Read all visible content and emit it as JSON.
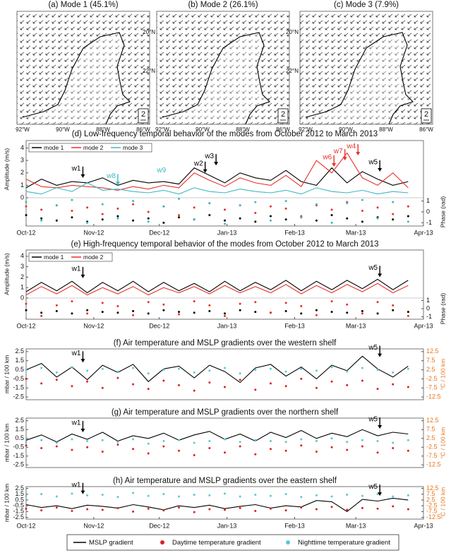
{
  "maps": [
    {
      "title": "(a) Mode 1 (45.1%)",
      "lon_labels": [
        "92°W",
        "90°W",
        "88°W",
        "86°W"
      ],
      "scale": 2
    },
    {
      "title": "(b) Mode 2 (26.1%)",
      "lat_labels": [
        "20°N",
        "22°N"
      ],
      "lon_labels": [
        "92°W",
        "90°W",
        "88°W",
        "86°W"
      ],
      "scale": 2
    },
    {
      "title": "(c) Mode 3 (7.9%)",
      "lat_labels": [
        "20°N",
        "22°N"
      ],
      "lon_labels": [
        "92°W",
        "90°W",
        "88°W",
        "86°W"
      ],
      "scale": 2
    }
  ],
  "chart_data": [
    {
      "type": "amplitude-phase",
      "title": "(d) Low-frequency temporal behavior of the modes from October 2012 to March 2013",
      "y_label": "Amplitude (m/s)",
      "y2_label": "Phase (rad)",
      "legend": "upper left",
      "x": [
        0,
        7,
        14,
        21,
        28,
        35,
        42,
        49,
        56,
        63,
        70,
        77,
        84,
        91,
        98,
        105,
        112,
        119,
        126,
        133,
        140,
        147,
        154,
        161,
        168,
        175
      ],
      "xlim": [
        0,
        182
      ],
      "xticks": [
        {
          "value": 0,
          "label": "Oct-12"
        },
        {
          "value": 31,
          "label": "Nov-12"
        },
        {
          "value": 61,
          "label": "Dec-12"
        },
        {
          "value": 92,
          "label": "Jan-13"
        },
        {
          "value": 123,
          "label": "Feb-13"
        },
        {
          "value": 151,
          "label": "Mar-13"
        },
        {
          "value": 182,
          "label": "Apr-13"
        }
      ],
      "ylim": [
        0,
        4.6
      ],
      "yticks": [
        0,
        1,
        2,
        3,
        4
      ],
      "y2lim": [
        -1.3,
        1.3
      ],
      "y2ticks": [
        -1,
        0,
        1
      ],
      "series": [
        {
          "name": "mode 1",
          "color": "#000000",
          "values": [
            0.8,
            1.5,
            1.0,
            1.3,
            1.2,
            1.6,
            1.0,
            1.4,
            1.2,
            1.3,
            1.1,
            2.4,
            1.8,
            1.2,
            2.0,
            1.6,
            1.4,
            2.2,
            1.3,
            1.0,
            2.4,
            1.2,
            2.1,
            1.5,
            1.0,
            1.3
          ],
          "phase": [
            -0.3,
            -0.6,
            -0.8,
            -0.5,
            -0.9,
            -0.7,
            -0.4,
            -0.8,
            -0.6,
            -1.0,
            -0.5,
            -0.7,
            -0.3,
            -0.8,
            -0.6,
            -0.9,
            -0.4,
            -0.7,
            -0.5,
            -0.8,
            -0.3,
            -0.6,
            -0.9,
            -0.5,
            -0.7,
            -0.4
          ]
        },
        {
          "name": "mode 2",
          "color": "#e8312a",
          "values": [
            1.5,
            0.9,
            0.8,
            1.0,
            0.9,
            0.8,
            0.6,
            0.9,
            0.7,
            1.0,
            0.8,
            2.0,
            1.4,
            0.9,
            1.6,
            1.2,
            1.0,
            1.8,
            0.9,
            3.0,
            2.0,
            3.6,
            1.6,
            1.0,
            2.0,
            0.8
          ],
          "phase": [
            0.5,
            0.2,
            0.6,
            0.1,
            0.4,
            -0.2,
            0.3,
            0.7,
            0.0,
            0.5,
            -0.3,
            0.4,
            0.8,
            0.2,
            0.6,
            -0.1,
            0.5,
            0.3,
            -0.4,
            0.6,
            0.2,
            0.9,
            0.1,
            0.4,
            -0.2,
            0.5
          ]
        },
        {
          "name": "mode 3",
          "color": "#3cb8c4",
          "values": [
            0.5,
            0.3,
            0.8,
            0.5,
            1.2,
            0.6,
            0.7,
            0.5,
            0.4,
            0.6,
            0.3,
            0.8,
            0.5,
            0.4,
            0.7,
            0.5,
            0.4,
            0.6,
            0.3,
            0.8,
            0.5,
            0.4,
            0.6,
            0.3,
            0.5,
            0.4
          ],
          "phase": [
            0.9,
            -0.8,
            0.6,
            1.1,
            -1.0,
            0.7,
            -0.6,
            1.0,
            -0.9,
            0.5,
            1.2,
            -0.7,
            0.8,
            -1.1,
            0.6,
            0.9,
            -0.8,
            1.0,
            -0.5,
            0.7,
            -1.0,
            0.8,
            1.1,
            -0.6,
            0.9,
            -0.9
          ]
        }
      ],
      "annotations": [
        {
          "label": "w1",
          "x": 26,
          "y": 1.6,
          "color": "#000000"
        },
        {
          "label": "w8",
          "x": 42,
          "y": 1.0,
          "color": "#3cb8c4"
        },
        {
          "label": "w9",
          "x": 62,
          "y": 2.2,
          "color": "#3cb8c4",
          "arrow": false
        },
        {
          "label": "w2",
          "x": 82,
          "y": 2.0,
          "color": "#000000"
        },
        {
          "label": "w3",
          "x": 87,
          "y": 2.6,
          "color": "#000000"
        },
        {
          "label": "w6",
          "x": 141,
          "y": 2.5,
          "color": "#e8312a"
        },
        {
          "label": "w7",
          "x": 146,
          "y": 3.0,
          "color": "#e8312a"
        },
        {
          "label": "w4",
          "x": 152,
          "y": 3.4,
          "color": "#e8312a"
        },
        {
          "label": "w5",
          "x": 162,
          "y": 2.1,
          "color": "#000000"
        }
      ]
    },
    {
      "type": "amplitude-phase",
      "title": "(e) High-frequency temporal behavior of the modes from October 2012 to March 2013",
      "y_label": "Amplitude (m/s)",
      "y2_label": "Phase (rad)",
      "legend": "upper left",
      "x": [
        0,
        7,
        14,
        21,
        28,
        35,
        42,
        49,
        56,
        63,
        70,
        77,
        84,
        91,
        98,
        105,
        112,
        119,
        126,
        133,
        140,
        147,
        154,
        161,
        168,
        175
      ],
      "xlim": [
        0,
        182
      ],
      "xticks": [
        {
          "value": 0,
          "label": "Oct-12"
        },
        {
          "value": 31,
          "label": "Nov-12"
        },
        {
          "value": 61,
          "label": "Dec-12"
        },
        {
          "value": 92,
          "label": "Jan-13"
        },
        {
          "value": 123,
          "label": "Feb-13"
        },
        {
          "value": 151,
          "label": "Mar-13"
        },
        {
          "value": 182,
          "label": "Apr-13"
        }
      ],
      "ylim": [
        0,
        4.6
      ],
      "yticks": [
        0,
        1,
        2,
        3,
        4
      ],
      "y2lim": [
        -1.3,
        1.3
      ],
      "y2ticks": [
        -1,
        0,
        1
      ],
      "series": [
        {
          "name": "mode 1",
          "color": "#000000",
          "values": [
            0.6,
            1.5,
            0.7,
            1.6,
            0.5,
            1.5,
            0.7,
            1.6,
            0.6,
            1.5,
            0.7,
            1.4,
            0.6,
            1.6,
            0.7,
            1.5,
            0.8,
            1.7,
            0.7,
            1.6,
            0.8,
            1.7,
            0.9,
            1.8,
            0.8,
            1.7
          ],
          "phase": [
            -0.2,
            -0.5,
            -0.3,
            -0.6,
            -0.2,
            -0.4,
            -0.5,
            -0.3,
            -0.6,
            -0.2,
            -0.4,
            -0.5,
            -0.3,
            -0.6,
            -0.2,
            -0.4,
            -0.5,
            -0.3,
            -0.6,
            -0.2,
            -0.4,
            -0.5,
            -0.3,
            -0.6,
            -0.2,
            -0.4
          ]
        },
        {
          "name": "mode 2",
          "color": "#e8312a",
          "values": [
            0.3,
            1.1,
            0.4,
            1.2,
            0.3,
            1.0,
            0.4,
            1.1,
            0.3,
            1.0,
            0.5,
            1.1,
            0.4,
            1.2,
            0.5,
            1.1,
            0.5,
            1.3,
            0.4,
            1.2,
            0.5,
            1.3,
            0.6,
            1.4,
            0.5,
            1.2
          ],
          "phase": [
            0.6,
            -0.9,
            0.4,
            0.9,
            -0.6,
            0.7,
            0.3,
            -0.8,
            0.8,
            0.5,
            -0.7,
            0.9,
            0.4,
            -0.9,
            0.6,
            0.8,
            -0.5,
            0.7,
            0.3,
            -0.8,
            0.9,
            0.5,
            -0.6,
            0.8,
            0.4,
            -0.9
          ]
        }
      ],
      "annotations": [
        {
          "label": "w1",
          "x": 26,
          "y": 1.9,
          "color": "#000000"
        },
        {
          "label": "w5",
          "x": 162,
          "y": 2.0,
          "color": "#000000"
        }
      ]
    },
    {
      "type": "gradient",
      "title": "(f) Air temperature and MSLP gradients over the western shelf",
      "y_label": "mbar / 100 km",
      "y2_label": "°C / 100 km",
      "y2color": "#e8751a",
      "x": [
        0,
        7,
        14,
        21,
        28,
        35,
        42,
        49,
        56,
        63,
        70,
        77,
        84,
        91,
        98,
        105,
        112,
        119,
        126,
        133,
        140,
        147,
        154,
        161,
        168,
        175
      ],
      "xlim": [
        0,
        182
      ],
      "ylim": [
        -2.8,
        2.8
      ],
      "yticks": [
        -2.5,
        -1.5,
        -0.5,
        0.5,
        1.5,
        2.5
      ],
      "y2lim": [
        -14,
        14
      ],
      "y2ticks": [
        -12.5,
        -7.5,
        -2.5,
        2.5,
        7.5,
        12.5
      ],
      "series": [
        {
          "name": "MSLP gradient",
          "color": "#000000",
          "style": "line",
          "values": [
            0.5,
            1.2,
            -0.3,
            0.8,
            -0.6,
            1.0,
            0.2,
            1.1,
            -0.8,
            0.6,
            0.9,
            -0.4,
            1.0,
            0.3,
            -0.9,
            0.7,
            1.1,
            -0.2,
            0.8,
            -0.5,
            1.0,
            0.4,
            2.0,
            0.6,
            -0.3,
            0.9
          ]
        },
        {
          "name": "Daytime temperature gradient",
          "color": "#e02020",
          "style": "dots",
          "axis": "y2",
          "values": [
            -2.5,
            -5.0,
            -3.0,
            -6.5,
            -4.0,
            -7.5,
            -2.0,
            -5.5,
            -8.0,
            -3.5,
            -6.0,
            -9.0,
            -4.5,
            -7.0,
            -3.0,
            -8.5,
            -5.0,
            -6.5,
            -2.5,
            -7.5,
            -4.0,
            -6.0,
            -3.5,
            -8.0,
            -5.5,
            -7.0
          ]
        },
        {
          "name": "Nighttime temperature gradient",
          "color": "#5cc8d8",
          "style": "dots",
          "axis": "y2",
          "values": [
            2.5,
            3.5,
            1.0,
            4.0,
            2.0,
            3.0,
            1.5,
            3.5,
            0.5,
            2.5,
            3.0,
            1.0,
            2.0,
            3.5,
            0.5,
            2.5,
            3.0,
            1.5,
            3.0,
            2.0,
            4.0,
            1.5,
            3.5,
            2.5,
            1.0,
            3.0
          ]
        }
      ],
      "annotations": [
        {
          "label": "w1",
          "x": 26,
          "y": 1.3,
          "color": "#000000"
        },
        {
          "label": "w5",
          "x": 162,
          "y": 1.9,
          "color": "#000000"
        }
      ]
    },
    {
      "type": "gradient",
      "title": "(g) Air temperature and MSLP gradients over the northern shelf",
      "y_label": "mbar / 100 km",
      "y2_label": "°C / 100 km",
      "y2color": "#e8751a",
      "x": [
        0,
        7,
        14,
        21,
        28,
        35,
        42,
        49,
        56,
        63,
        70,
        77,
        84,
        91,
        98,
        105,
        112,
        119,
        126,
        133,
        140,
        147,
        154,
        161,
        168,
        175
      ],
      "xlim": [
        0,
        182
      ],
      "ylim": [
        -2.8,
        2.8
      ],
      "yticks": [
        -2.5,
        -1.5,
        -0.5,
        0.5,
        1.5,
        2.5
      ],
      "y2lim": [
        -14,
        14
      ],
      "y2ticks": [
        -12.5,
        -7.5,
        -2.5,
        2.5,
        7.5,
        12.5
      ],
      "series": [
        {
          "color": "#000000",
          "style": "line",
          "values": [
            0.3,
            0.9,
            0.1,
            1.0,
            0.4,
            1.2,
            0.2,
            0.8,
            0.5,
            1.1,
            0.3,
            0.9,
            1.3,
            0.4,
            1.0,
            0.2,
            1.2,
            0.6,
            1.4,
            0.5,
            1.1,
            0.7,
            1.5,
            0.8,
            1.2,
            1.0
          ]
        },
        {
          "color": "#e02020",
          "style": "dots",
          "axis": "y2",
          "values": [
            -1.5,
            -3.0,
            -2.0,
            -4.0,
            -2.5,
            -5.0,
            -1.0,
            -3.5,
            -6.0,
            -2.0,
            -4.5,
            -7.0,
            -3.0,
            -5.5,
            -2.0,
            -6.5,
            -3.5,
            -4.5,
            -1.5,
            -5.0,
            -2.5,
            -4.0,
            -2.0,
            -5.5,
            -3.0,
            -4.5
          ]
        },
        {
          "color": "#5cc8d8",
          "style": "dots",
          "axis": "y2",
          "values": [
            0.5,
            1.5,
            0.0,
            2.0,
            1.0,
            1.5,
            0.5,
            2.0,
            -0.5,
            1.0,
            1.5,
            0.0,
            1.0,
            2.0,
            0.5,
            1.5,
            1.0,
            0.5,
            2.0,
            1.0,
            2.5,
            0.5,
            1.5,
            1.0,
            0.0,
            1.5
          ]
        }
      ],
      "annotations": [
        {
          "label": "w1",
          "x": 26,
          "y": 1.2,
          "color": "#000000"
        },
        {
          "label": "w5",
          "x": 162,
          "y": 1.6,
          "color": "#000000"
        }
      ]
    },
    {
      "type": "gradient",
      "title": "(h) Air temperature and MSLP gradients over the eastern shelf",
      "y_label": "mbar / 100 km",
      "y2_label": "°C / 100 km",
      "y2color": "#e8751a",
      "x": [
        0,
        7,
        14,
        21,
        28,
        35,
        42,
        49,
        56,
        63,
        70,
        77,
        84,
        91,
        98,
        105,
        112,
        119,
        126,
        133,
        140,
        147,
        154,
        161,
        168,
        175
      ],
      "xlim": [
        0,
        182
      ],
      "xticks": [
        {
          "value": 0,
          "label": "Oct-12"
        },
        {
          "value": 31,
          "label": "Nov-12"
        },
        {
          "value": 61,
          "label": "Dec-12"
        },
        {
          "value": 92,
          "label": "Jan-13"
        },
        {
          "value": 123,
          "label": "Feb-13"
        },
        {
          "value": 151,
          "label": "Mar-13"
        },
        {
          "value": 182,
          "label": "Apr-13"
        }
      ],
      "ylim": [
        -2.8,
        2.8
      ],
      "yticks": [
        -2.5,
        -1.5,
        -0.5,
        0.5,
        1.5,
        2.5
      ],
      "y2lim": [
        -14,
        14
      ],
      "y2ticks": [
        -12.5,
        -7.5,
        -2.5,
        2.5,
        7.5,
        12.5
      ],
      "series": [
        {
          "color": "#000000",
          "style": "line",
          "values": [
            -0.3,
            -0.8,
            -0.5,
            -1.0,
            -0.4,
            -0.6,
            -0.9,
            -0.3,
            -0.7,
            -1.2,
            -0.5,
            -0.8,
            -0.4,
            -1.0,
            -0.6,
            -0.3,
            -0.9,
            -0.5,
            -0.7,
            0.4,
            0.2,
            -1.5,
            0.6,
            0.3,
            0.8,
            0.5
          ]
        },
        {
          "color": "#e02020",
          "style": "dots",
          "axis": "y2",
          "values": [
            -5.0,
            -6.5,
            -4.0,
            -7.0,
            -5.5,
            -6.0,
            -4.5,
            -7.5,
            -5.0,
            -6.5,
            -4.0,
            -8.0,
            -5.5,
            -6.0,
            -4.5,
            -7.0,
            -5.0,
            -6.5,
            -4.0,
            -5.5,
            -3.5,
            -6.0,
            -4.5,
            -5.0,
            -3.0,
            -5.5
          ]
        },
        {
          "color": "#5cc8d8",
          "style": "dots",
          "axis": "y2",
          "values": [
            6.0,
            7.5,
            5.5,
            8.0,
            6.5,
            7.0,
            5.0,
            8.5,
            6.0,
            7.5,
            5.5,
            7.0,
            6.5,
            8.0,
            5.5,
            7.0,
            6.0,
            7.5,
            5.0,
            6.5,
            5.5,
            7.0,
            6.0,
            7.5,
            5.5,
            6.5
          ]
        }
      ],
      "annotations": [
        {
          "label": "w1",
          "x": 26,
          "y": 1.5,
          "color": "#000000"
        },
        {
          "label": "w5",
          "x": 162,
          "y": 1.2,
          "color": "#000000"
        }
      ]
    }
  ]
}
